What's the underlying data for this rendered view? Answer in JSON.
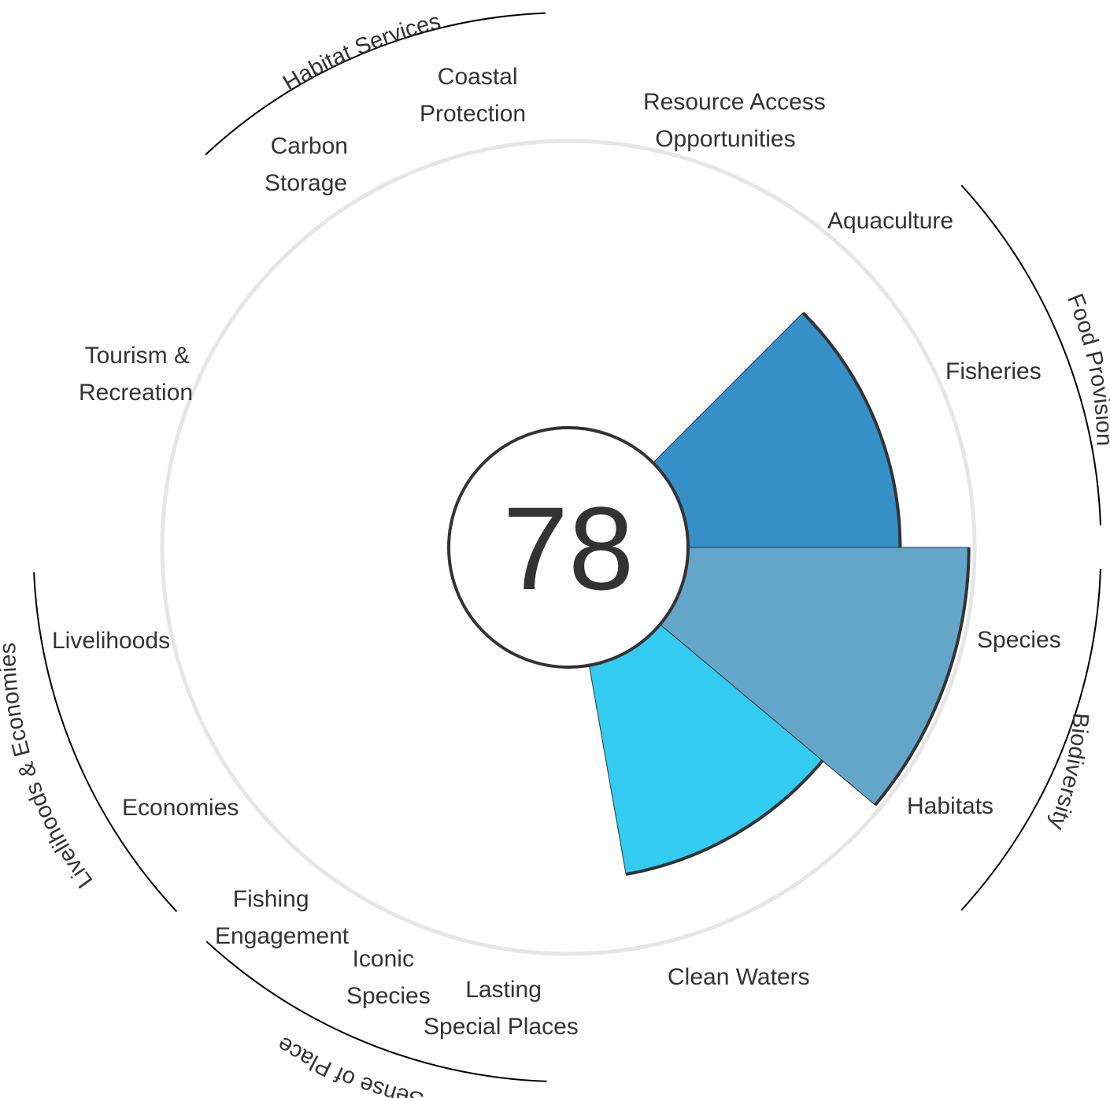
{
  "chart_data": {
    "type": "flower",
    "score": "78",
    "petals": [
      {
        "goal": "Fisheries",
        "value": 0.74,
        "color": "#3690c8"
      },
      {
        "goal": "Species",
        "value": 0.98,
        "color": "#63a6ca"
      },
      {
        "goal": "Habitats",
        "value": 0.74,
        "color": "#33ccf0"
      }
    ],
    "goal_labels": [
      {
        "text": [
          "Resource Access",
          "Opportunities"
        ]
      },
      {
        "text": [
          "Aquaculture"
        ]
      },
      {
        "text": [
          "Fisheries"
        ]
      },
      {
        "text": [
          "Species"
        ]
      },
      {
        "text": [
          "Habitats"
        ]
      },
      {
        "text": [
          "Clean Waters"
        ]
      },
      {
        "text": [
          "Lasting",
          "Special Places"
        ]
      },
      {
        "text": [
          "Iconic",
          "Species"
        ]
      },
      {
        "text": [
          "Fishing",
          "Engagement"
        ]
      },
      {
        "text": [
          "Economies"
        ]
      },
      {
        "text": [
          "Livelihoods"
        ]
      },
      {
        "text": [
          "Tourism &",
          "Recreation"
        ]
      },
      {
        "text": [
          "Carbon",
          "Storage"
        ]
      },
      {
        "text": [
          "Coastal",
          "Protection"
        ]
      }
    ],
    "group_labels": [
      {
        "text": "Habitat Services"
      },
      {
        "text": "Food Provision"
      },
      {
        "text": "Biodiversity"
      },
      {
        "text": "Sense of Place"
      },
      {
        "text": "Livelihoods & Economies"
      }
    ]
  }
}
